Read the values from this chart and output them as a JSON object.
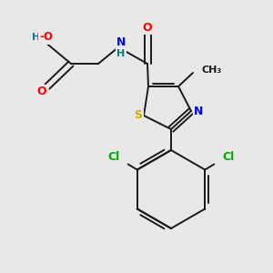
{
  "background_color": "#e8e8e8",
  "bond_color": "#1a1a1a",
  "atom_colors": {
    "O": "#ff0000",
    "N": "#0000ff",
    "S": "#ccaa00",
    "Cl": "#00aa00",
    "H": "#008080",
    "C": "#1a1a1a"
  },
  "figsize": [
    3.0,
    3.0
  ],
  "dpi": 100
}
